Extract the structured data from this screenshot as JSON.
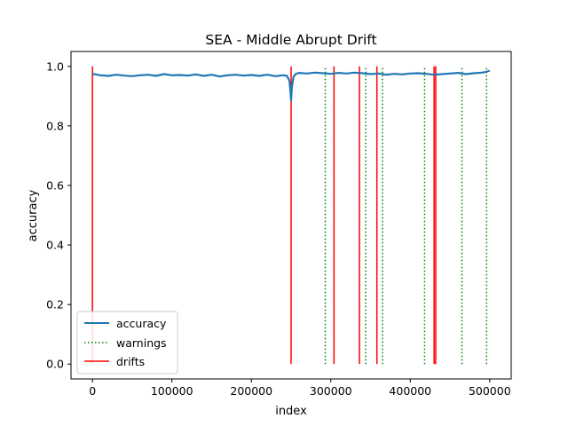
{
  "chart_data": {
    "type": "line",
    "title": "SEA - Middle Abrupt Drift",
    "xlabel": "index",
    "ylabel": "accuracy",
    "xlim": [
      -27000,
      527000
    ],
    "ylim": [
      -0.05,
      1.05
    ],
    "x_ticks": [
      0,
      100000,
      200000,
      300000,
      400000,
      500000
    ],
    "y_ticks": [
      0.0,
      0.2,
      0.4,
      0.6,
      0.8,
      1.0
    ],
    "y_tick_labels": [
      "0.0",
      "0.2",
      "0.4",
      "0.6",
      "0.8",
      "1.0"
    ],
    "grid": false,
    "legend": {
      "placement": "lower-left"
    },
    "series": [
      {
        "name": "accuracy",
        "style": "line",
        "color": "#1f77b4",
        "x": [
          0,
          10000,
          20000,
          30000,
          40000,
          50000,
          60000,
          70000,
          80000,
          90000,
          100000,
          110000,
          120000,
          130000,
          140000,
          150000,
          160000,
          170000,
          180000,
          190000,
          200000,
          210000,
          220000,
          230000,
          240000,
          245000,
          248000,
          249000,
          250000,
          251000,
          253000,
          256000,
          260000,
          270000,
          280000,
          290000,
          300000,
          310000,
          320000,
          330000,
          340000,
          350000,
          360000,
          370000,
          380000,
          390000,
          400000,
          410000,
          420000,
          430000,
          440000,
          450000,
          460000,
          470000,
          480000,
          490000,
          495000,
          500000
        ],
        "y": [
          0.975,
          0.97,
          0.968,
          0.972,
          0.969,
          0.967,
          0.97,
          0.972,
          0.968,
          0.974,
          0.97,
          0.971,
          0.969,
          0.973,
          0.968,
          0.972,
          0.966,
          0.97,
          0.972,
          0.969,
          0.971,
          0.968,
          0.972,
          0.967,
          0.97,
          0.968,
          0.95,
          0.92,
          0.885,
          0.93,
          0.965,
          0.975,
          0.978,
          0.976,
          0.979,
          0.977,
          0.975,
          0.978,
          0.976,
          0.979,
          0.977,
          0.974,
          0.976,
          0.972,
          0.975,
          0.973,
          0.976,
          0.977,
          0.975,
          0.972,
          0.974,
          0.976,
          0.978,
          0.974,
          0.977,
          0.979,
          0.981,
          0.986
        ]
      },
      {
        "name": "warnings",
        "style": "vlines-dotted",
        "color": "#008000",
        "x": [
          293000,
          344000,
          365000,
          418000,
          465000,
          496000
        ]
      },
      {
        "name": "drifts",
        "style": "vlines",
        "color": "#ff0000",
        "x": [
          0,
          250000,
          304000,
          336000,
          358000,
          430000,
          432000
        ]
      }
    ]
  }
}
